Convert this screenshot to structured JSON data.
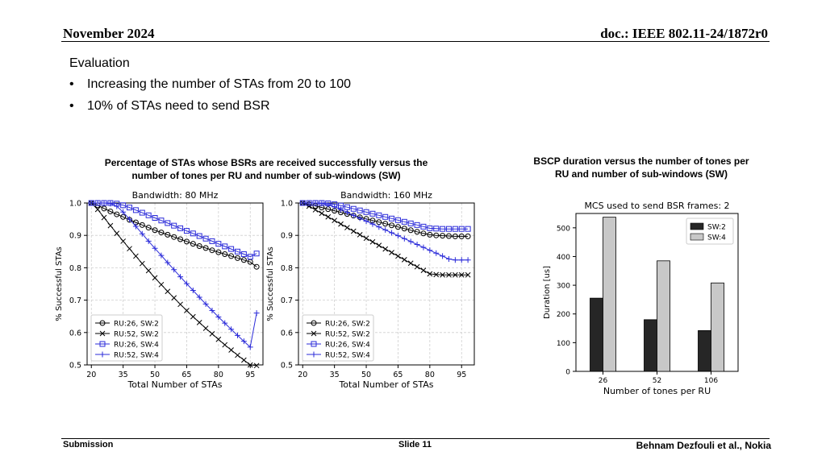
{
  "header": {
    "date": "November 2024",
    "doc": "doc.: IEEE 802.11-24/1872r0"
  },
  "intro": "Evaluation",
  "bullets": [
    "Increasing the number of STAs from 20 to 100",
    "10% of STAs need to send BSR"
  ],
  "captions": {
    "left": [
      "Percentage of STAs whose BSRs are received successfully versus the",
      "number of tones per RU and number of sub-windows (SW)"
    ],
    "right": [
      "BSCP duration versus the number of tones per",
      "RU and number of sub-windows (SW)"
    ]
  },
  "footer": {
    "left": "Submission",
    "center": "Slide 11",
    "right": "Behnam Dezfouli et al., Nokia"
  },
  "chart_data": [
    {
      "type": "line",
      "title": "Bandwidth: 80 MHz",
      "xlabel": "Total Number of STAs",
      "ylabel": "% Successful STAs",
      "x": [
        20,
        23,
        26,
        29,
        32,
        35,
        38,
        41,
        44,
        47,
        50,
        53,
        56,
        59,
        62,
        65,
        68,
        71,
        74,
        77,
        80,
        83,
        86,
        89,
        92,
        95,
        98
      ],
      "xticks": [
        20,
        35,
        50,
        65,
        80,
        95
      ],
      "yticks": [
        "0.5",
        "0.6",
        "0.7",
        "0.8",
        "0.9",
        "1.0"
      ],
      "xlim": [
        18,
        101
      ],
      "ylim": [
        0.5,
        1.0
      ],
      "grid": true,
      "legend": "lower-left",
      "series": [
        {
          "name": "RU:26, SW:2",
          "marker": "circle",
          "color": "#000000",
          "values": [
            1.0,
            0.993,
            0.983,
            0.974,
            0.965,
            0.957,
            0.948,
            0.94,
            0.932,
            0.924,
            0.916,
            0.909,
            0.902,
            0.895,
            0.888,
            0.881,
            0.874,
            0.867,
            0.861,
            0.854,
            0.848,
            0.842,
            0.836,
            0.83,
            0.824,
            0.818,
            0.803
          ]
        },
        {
          "name": "RU:52, SW:2",
          "marker": "x",
          "color": "#000000",
          "values": [
            1.0,
            0.98,
            0.955,
            0.93,
            0.906,
            0.882,
            0.859,
            0.836,
            0.813,
            0.791,
            0.769,
            0.748,
            0.727,
            0.707,
            0.687,
            0.668,
            0.649,
            0.631,
            0.613,
            0.596,
            0.579,
            0.562,
            0.546,
            0.53,
            0.515,
            0.5,
            0.498
          ]
        },
        {
          "name": "RU:26, SW:4",
          "marker": "square",
          "color": "#2b2bd9",
          "values": [
            1.0,
            1.0,
            1.0,
            1.0,
            0.998,
            0.993,
            0.986,
            0.978,
            0.97,
            0.962,
            0.954,
            0.946,
            0.938,
            0.93,
            0.922,
            0.914,
            0.906,
            0.898,
            0.89,
            0.882,
            0.874,
            0.866,
            0.858,
            0.85,
            0.842,
            0.834,
            0.844
          ]
        },
        {
          "name": "RU:52, SW:4",
          "marker": "plus",
          "color": "#2b2bd9",
          "values": [
            1.0,
            1.0,
            1.0,
            0.998,
            0.99,
            0.972,
            0.95,
            0.928,
            0.905,
            0.882,
            0.86,
            0.838,
            0.816,
            0.794,
            0.772,
            0.751,
            0.73,
            0.709,
            0.688,
            0.668,
            0.648,
            0.629,
            0.61,
            0.591,
            0.573,
            0.555,
            0.66
          ]
        }
      ]
    },
    {
      "type": "line",
      "title": "Bandwidth: 160 MHz",
      "xlabel": "Total Number of STAs",
      "ylabel": "% Successful STAs",
      "x": [
        20,
        23,
        26,
        29,
        32,
        35,
        38,
        41,
        44,
        47,
        50,
        53,
        56,
        59,
        62,
        65,
        68,
        71,
        74,
        77,
        80,
        83,
        86,
        89,
        92,
        95,
        98
      ],
      "xticks": [
        20,
        35,
        50,
        65,
        80,
        95
      ],
      "yticks": [
        "0.5",
        "0.6",
        "0.7",
        "0.8",
        "0.9",
        "1.0"
      ],
      "xlim": [
        18,
        101
      ],
      "ylim": [
        0.5,
        1.0
      ],
      "grid": true,
      "legend": "lower-left",
      "series": [
        {
          "name": "RU:26, SW:2",
          "marker": "circle",
          "color": "#000000",
          "values": [
            1.0,
            0.996,
            0.991,
            0.986,
            0.981,
            0.976,
            0.971,
            0.966,
            0.961,
            0.956,
            0.951,
            0.946,
            0.941,
            0.936,
            0.931,
            0.926,
            0.921,
            0.916,
            0.911,
            0.906,
            0.902,
            0.9,
            0.899,
            0.898,
            0.897,
            0.897,
            0.897
          ]
        },
        {
          "name": "RU:52, SW:2",
          "marker": "x",
          "color": "#000000",
          "values": [
            1.0,
            0.99,
            0.979,
            0.968,
            0.957,
            0.946,
            0.935,
            0.924,
            0.913,
            0.902,
            0.891,
            0.88,
            0.869,
            0.858,
            0.847,
            0.836,
            0.825,
            0.814,
            0.803,
            0.792,
            0.781,
            0.779,
            0.778,
            0.778,
            0.778,
            0.778,
            0.778
          ]
        },
        {
          "name": "RU:26, SW:4",
          "marker": "square",
          "color": "#2b2bd9",
          "values": [
            1.0,
            1.0,
            1.0,
            1.0,
            0.999,
            0.996,
            0.992,
            0.987,
            0.982,
            0.977,
            0.972,
            0.967,
            0.962,
            0.957,
            0.952,
            0.947,
            0.942,
            0.937,
            0.932,
            0.927,
            0.922,
            0.921,
            0.92,
            0.92,
            0.92,
            0.92,
            0.92
          ]
        },
        {
          "name": "RU:52, SW:4",
          "marker": "plus",
          "color": "#2b2bd9",
          "values": [
            1.0,
            1.0,
            1.0,
            0.998,
            0.995,
            0.988,
            0.98,
            0.971,
            0.962,
            0.953,
            0.944,
            0.935,
            0.926,
            0.917,
            0.908,
            0.899,
            0.89,
            0.881,
            0.872,
            0.863,
            0.854,
            0.845,
            0.836,
            0.827,
            0.824,
            0.824,
            0.824
          ]
        }
      ]
    },
    {
      "type": "bar",
      "title": "MCS used to send BSR frames: 2",
      "xlabel": "Number of tones per RU",
      "ylabel": "Duration [us]",
      "categories": [
        "26",
        "52",
        "106"
      ],
      "yticks": [
        "0",
        "100",
        "200",
        "300",
        "400",
        "500"
      ],
      "ylim": [
        0,
        550
      ],
      "grid": false,
      "legend": "top-right",
      "series": [
        {
          "name": "SW:2",
          "color": "#262626",
          "values": [
            255,
            180,
            142
          ]
        },
        {
          "name": "SW:4",
          "color": "#c8c8c8",
          "values": [
            537,
            385,
            308
          ]
        }
      ]
    }
  ]
}
